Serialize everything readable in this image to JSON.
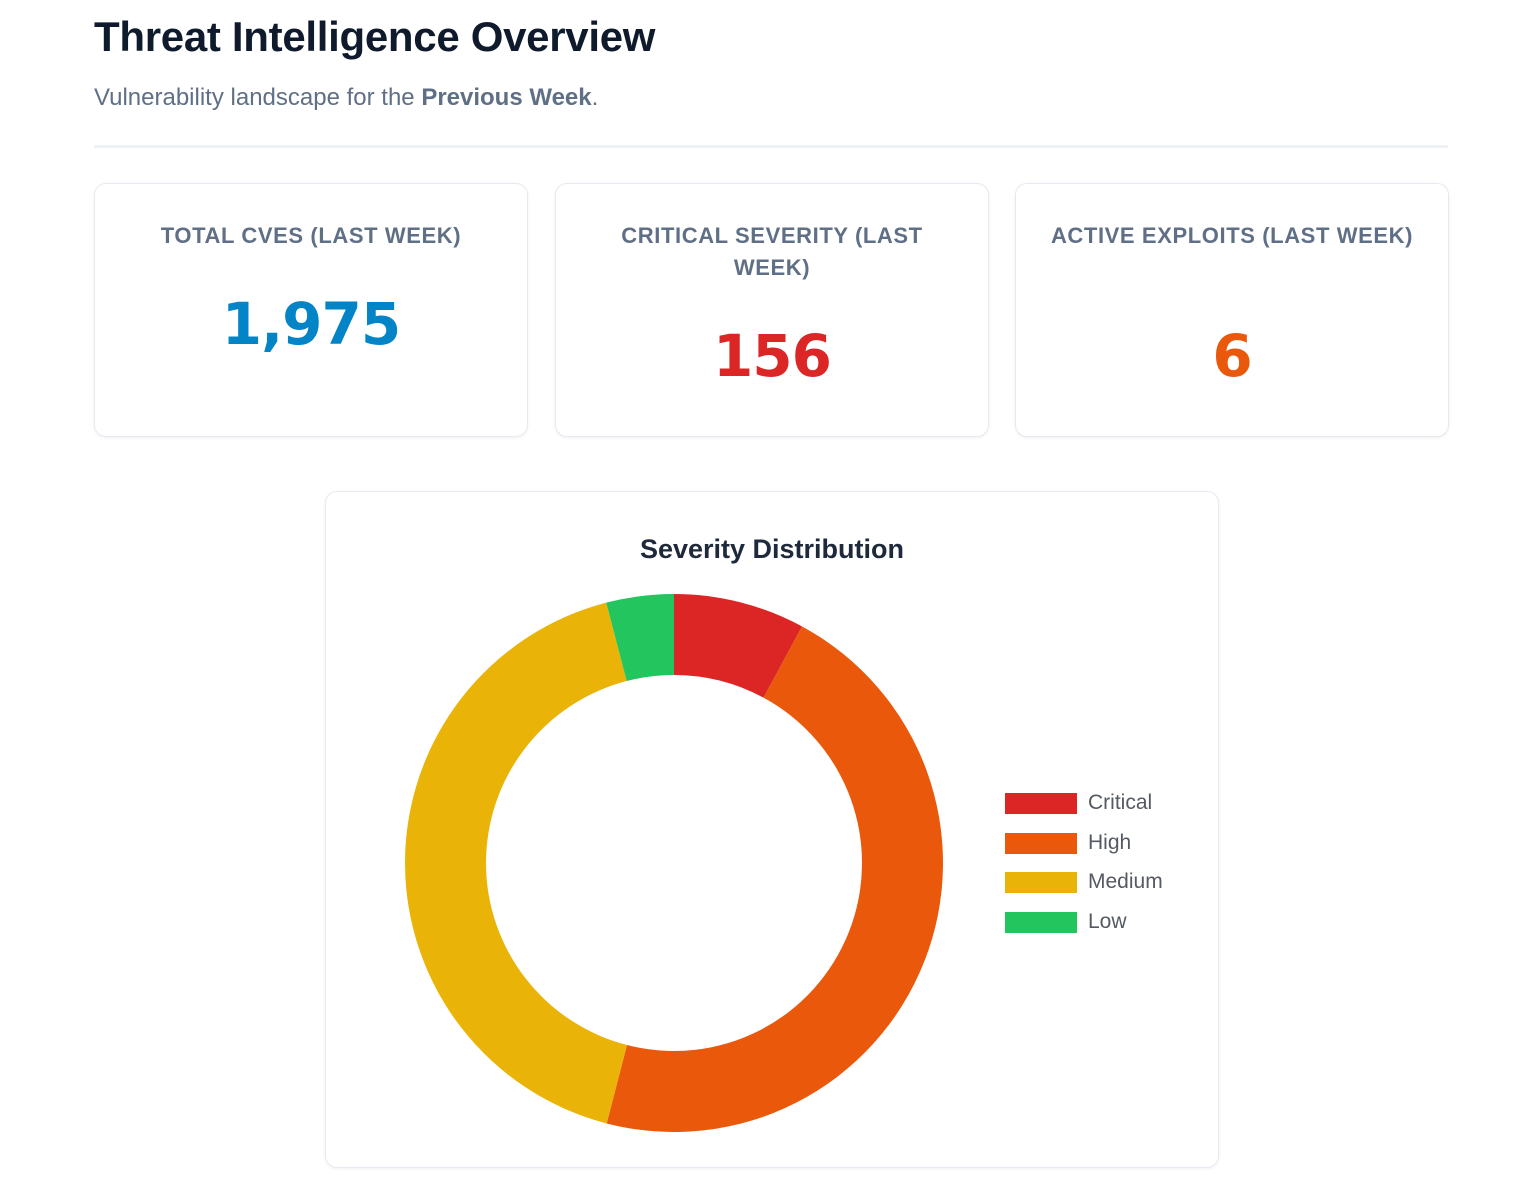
{
  "header": {
    "title": "Threat Intelligence Overview",
    "subtitle_prefix": "Vulnerability landscape for the ",
    "subtitle_period": "Previous Week",
    "subtitle_suffix": "."
  },
  "stats": [
    {
      "label": "TOTAL CVES (LAST WEEK)",
      "value": "1,975",
      "color": "#0284c7"
    },
    {
      "label": "CRITICAL SEVERITY (LAST WEEK)",
      "value": "156",
      "color": "#dc2626"
    },
    {
      "label": "ACTIVE EXPLOITS (LAST WEEK)",
      "value": "6",
      "color": "#ea580c"
    }
  ],
  "chart_data": {
    "type": "pie",
    "title": "Severity Distribution",
    "categories": [
      "Critical",
      "High",
      "Medium",
      "Low"
    ],
    "values": [
      156,
      911,
      828,
      80
    ],
    "colors": [
      "#dc2626",
      "#ea580c",
      "#eab308",
      "#22c55e"
    ],
    "legend_placement": "right"
  }
}
